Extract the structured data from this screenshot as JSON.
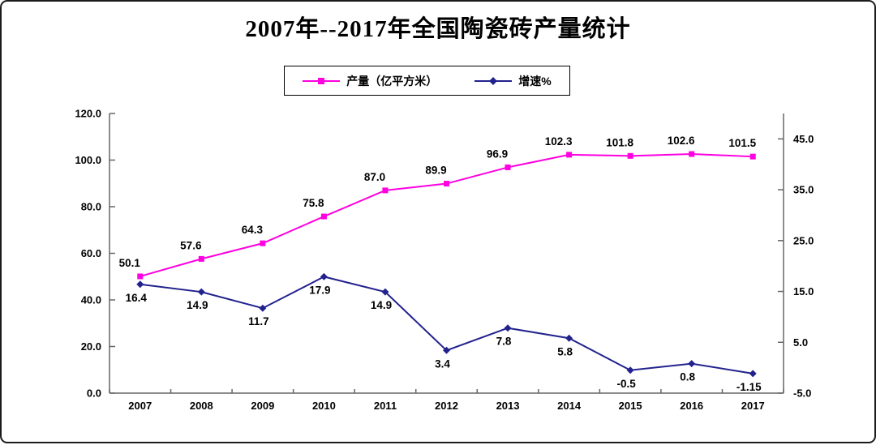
{
  "colors": {
    "production_series": "#FF00E0",
    "growth_series": "#22228E",
    "axis_line": "#666666",
    "label_text": "#000000",
    "frame_border": "#1B1B1B"
  },
  "chart_data": {
    "type": "line",
    "title": "2007年--2017年全国陶瓷砖产量统计",
    "categories": [
      "2007",
      "2008",
      "2009",
      "2010",
      "2011",
      "2012",
      "2013",
      "2014",
      "2015",
      "2016",
      "2017"
    ],
    "series": [
      {
        "name": "产量（亿平方米）",
        "axis": "left",
        "color": "#FF00E0",
        "marker": "square",
        "label_position": "above",
        "values": [
          50.1,
          57.6,
          64.3,
          75.8,
          87.0,
          89.9,
          96.9,
          102.3,
          101.8,
          102.6,
          101.5
        ],
        "labels": [
          "50.1",
          "57.6",
          "64.3",
          "75.8",
          "87.0",
          "89.9",
          "96.9",
          "102.3",
          "101.8",
          "102.6",
          "101.5"
        ]
      },
      {
        "name": "增速%",
        "axis": "right",
        "color": "#22228E",
        "marker": "diamond",
        "label_position": "below",
        "values": [
          16.4,
          14.9,
          11.7,
          17.9,
          14.9,
          3.4,
          7.8,
          5.8,
          -0.5,
          0.8,
          -1.15
        ],
        "labels": [
          "16.4",
          "14.9",
          "11.7",
          "17.9",
          "14.9",
          "3.4",
          "7.8",
          "5.8",
          "-0.5",
          "0.8",
          "-1.15"
        ]
      }
    ],
    "left_axis": {
      "min": 0,
      "max": 120,
      "tick_values": [
        120,
        100,
        80,
        60,
        40,
        20,
        0
      ],
      "tick_labels": [
        "120.0",
        "100.0",
        "80.0",
        "60.0",
        "40.0",
        "20.0",
        "0.0"
      ]
    },
    "right_axis": {
      "min": -5,
      "max": 50,
      "tick_values": [
        45,
        35,
        25,
        15,
        5,
        -5
      ],
      "tick_labels": [
        "45.0",
        "35.0",
        "25.0",
        "15.0",
        "5.0",
        "-5.0"
      ]
    },
    "grid": false,
    "legend_position": "top"
  }
}
